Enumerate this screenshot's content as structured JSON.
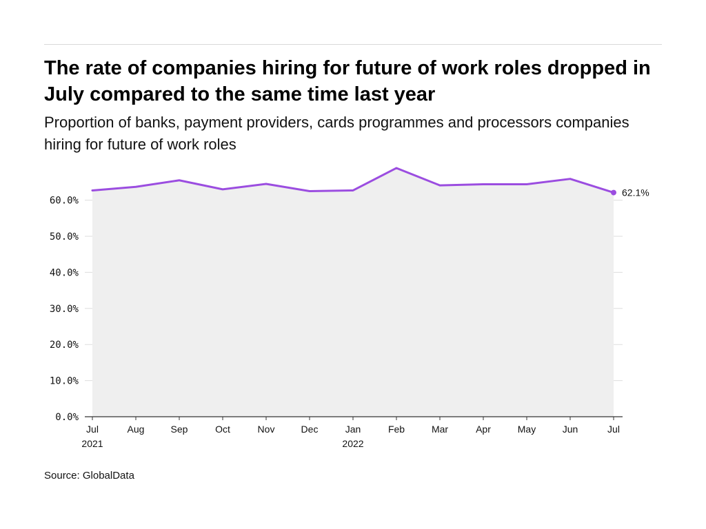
{
  "header": {
    "title": "The rate of companies hiring for future of work roles dropped in July compared to the same time last year",
    "subtitle": "Proportion of banks, payment providers, cards programmes and processors companies hiring for future of work roles"
  },
  "footer": {
    "source": "Source: GlobalData"
  },
  "colors": {
    "line": "#9b4de0",
    "area": "#efefef",
    "grid": "#dddddd",
    "axis": "#333333"
  },
  "chart_data": {
    "type": "area",
    "title": "The rate of companies hiring for future of work roles dropped in July compared to the same time last year",
    "subtitle": "Proportion of banks, payment providers, cards programmes and processors companies hiring for future of work roles",
    "xlabel": "",
    "ylabel": "",
    "categories": [
      "Jul",
      "Aug",
      "Sep",
      "Oct",
      "Nov",
      "Dec",
      "Jan",
      "Feb",
      "Mar",
      "Apr",
      "May",
      "Jun",
      "Jul"
    ],
    "category_sublabels": [
      "2021",
      "",
      "",
      "",
      "",
      "",
      "2022",
      "",
      "",
      "",
      "",
      "",
      ""
    ],
    "series": [
      {
        "values": [
          62.7,
          63.7,
          65.5,
          63.0,
          64.5,
          62.5,
          62.7,
          68.9,
          64.1,
          64.4,
          64.4,
          65.9,
          62.1
        ]
      }
    ],
    "ylim": [
      0,
      70
    ],
    "yticks": [
      0,
      10,
      20,
      30,
      40,
      50,
      60
    ],
    "ytick_labels": [
      "0.0%",
      "10.0%",
      "20.0%",
      "30.0%",
      "40.0%",
      "50.0%",
      "60.0%"
    ],
    "end_label": "62.1%",
    "grid": true,
    "legend": "none"
  }
}
